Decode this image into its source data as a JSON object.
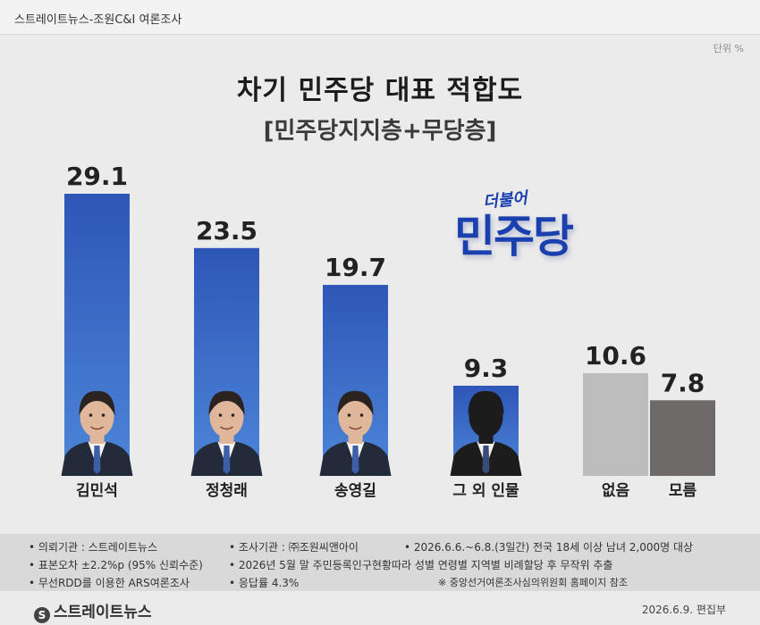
{
  "header": {
    "source": "스트레이트뉴스-조원C&I 여론조사",
    "unit": "단위 %"
  },
  "title": "차기 민주당 대표 적합도",
  "subtitle": "[민주당지지층+무당층]",
  "logo": {
    "small": "더불어",
    "main": "민주당"
  },
  "colors": {
    "blue_top": "#2e56b8",
    "blue_bottom": "#4d86d8",
    "gray_light": "#bdbdbd",
    "gray_dark": "#6e6a6a"
  },
  "chart_data": {
    "type": "bar",
    "categories": [
      "김민석",
      "정청래",
      "송영길",
      "그 외 인물",
      "없음",
      "모름"
    ],
    "values": [
      29.1,
      23.5,
      19.7,
      9.3,
      10.6,
      7.8
    ],
    "value_labels": [
      "29.1",
      "23.5",
      "19.7",
      "9.3",
      "10.6",
      "7.8"
    ],
    "bar_colors": [
      "blue",
      "blue",
      "blue",
      "blue",
      "gray_light",
      "gray_dark"
    ],
    "title": "차기 민주당 대표 적합도",
    "subtitle": "[민주당지지층+무당층]",
    "ylim": [
      0,
      30
    ],
    "grid": false,
    "legend": "none"
  },
  "footer": {
    "line1a": "• 의뢰기관 : 스트레이트뉴스",
    "line1b": "• 조사기관 : ㈜조원씨앤아이",
    "line1c": "• 2026.6.6.~6.8.(3일간) 전국 18세 이상 남녀 2,000명 대상",
    "line2a": "• 표본오차 ±2.2%p (95% 신뢰수준)",
    "line2b": "• 2026년 5월 말 주민등록인구현황따라 성별 연령별 지역별 비례할당 후 무작위 추출",
    "line3a": "• 무선RDD를 이용한 ARS여론조사",
    "line3b": "• 응답률 4.3%",
    "line3c": "※ 중앙선거여론조사심의위원회 홈페이지 참조"
  },
  "brand": "스트레이트뉴스",
  "date": "2026.6.9.  편집부"
}
